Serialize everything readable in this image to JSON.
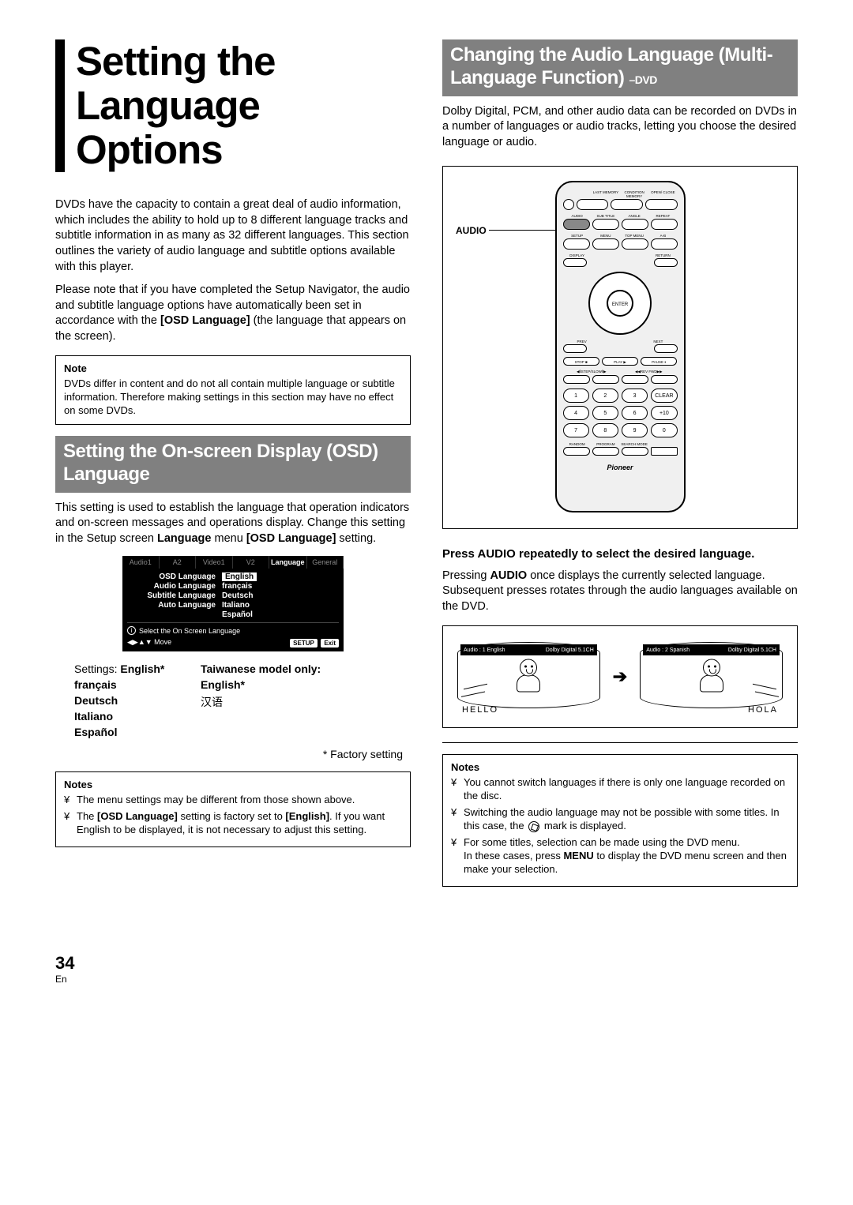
{
  "page": {
    "number": "34",
    "lang": "En"
  },
  "mainTitle": "Setting the Language Options",
  "intro": {
    "p1": "DVDs have the capacity to contain a great deal of audio information, which includes the ability to hold up to 8 different language tracks and subtitle information in as many as 32 different languages. This section outlines the variety of audio language and subtitle options available with this player.",
    "p2a": "Please note that if you have completed the Setup Navigator, the audio and subtitle language options have automatically been set in accordance with the ",
    "p2bold": "[OSD Language]",
    "p2b": " (the language that appears on the screen)."
  },
  "note1": {
    "label": "Note",
    "text": "DVDs differ in content and do not all contain multiple language or subtitle information. Therefore making settings in this section may have no effect on some DVDs."
  },
  "osdSection": {
    "title": "Setting the On-screen Display (OSD) Language",
    "p1a": "This setting is used to establish the language that operation indicators and on-screen messages and operations display. Change this setting in the Setup screen ",
    "p1b": "Language",
    "p1c": " menu ",
    "p1d": "[OSD Language]",
    "p1e": " setting."
  },
  "osdMenu": {
    "tabs": [
      "Audio1",
      "A2",
      "Video1",
      "V2",
      "Language",
      "General"
    ],
    "activeTab": 4,
    "rows": [
      {
        "label": "OSD Language",
        "value": "English",
        "hl": true
      },
      {
        "label": "Audio Language",
        "value": "français"
      },
      {
        "label": "Subtitle Language",
        "value": "Deutsch"
      },
      {
        "label": "Auto Language",
        "value": "Italiano"
      },
      {
        "label": "",
        "value": "Español"
      }
    ],
    "info": "Select the On Screen Language",
    "move": "Move",
    "setup": "SETUP",
    "exit": "Exit"
  },
  "settings": {
    "label": "Settings:",
    "colA": [
      "English*",
      "français",
      "Deutsch",
      "Italiano",
      "Español"
    ],
    "colBTitle": "Taiwanese model only:",
    "colB": [
      "English*",
      "汉语"
    ],
    "factory": "* Factory setting"
  },
  "notes2": {
    "label": "Notes",
    "items": [
      {
        "text": "The menu settings may be different from those shown above."
      },
      {
        "a": "The ",
        "b": "[OSD Language]",
        "c": " setting is factory set to ",
        "d": "[English]",
        "e": ". If you want English to be displayed, it is not necessary to adjust this setting."
      }
    ]
  },
  "audioSection": {
    "title": "Changing the Audio Language (Multi-Language Function) ",
    "titleSub": "–DVD",
    "p1": "Dolby Digital, PCM, and other audio data can be recorded on DVDs in a number of languages or audio tracks, letting you choose the desired language or audio.",
    "audioLabel": "AUDIO",
    "instr": "Press AUDIO repeatedly to select the desired language.",
    "p2a": "Pressing ",
    "p2bold": "AUDIO",
    "p2b": " once displays the currently selected language. Subsequent presses rotates through the audio languages available on the DVD."
  },
  "tv": {
    "bar1L": "Audio      : 1    English",
    "bar1R": "Dolby Digital 5.1CH",
    "bar2L": "Audio      : 2   Spanish",
    "bar2R": "Dolby Digital 5.1CH",
    "word1": "HELLO",
    "word2": "HOLA"
  },
  "notes3": {
    "label": "Notes",
    "items": [
      "You cannot switch languages if there is only one language recorded on the disc.",
      "Switching the audio language may not be possible with some titles. In this case, the __MARK__ mark is displayed.",
      "For some titles, selection can be made using the DVD menu.\nIn these cases, press MENU to display the DVD menu screen and then make your selection."
    ]
  },
  "remote": {
    "row1labels": [
      "",
      "LAST MEMORY",
      "CONDITION MEMORY",
      "OPEN/ CLOSE"
    ],
    "row2labels": [
      "AUDIO",
      "SUB TITLE",
      "ANGLE",
      "REPEAT"
    ],
    "row3labels": [
      "SETUP",
      "MENU",
      "TOP MENU",
      "A-B"
    ],
    "row4labels": [
      "DISPLAY",
      "",
      "",
      "RETURN"
    ],
    "prevnext": [
      "PREV",
      "NEXT"
    ],
    "transport": [
      "STOP ■",
      "PLAY ▶",
      "PAUSE ⏸"
    ],
    "step": [
      "◀ⅡSTEP/SLOWⅡ▶",
      "◀◀REV  FWD▶▶"
    ],
    "nums": [
      "1",
      "2",
      "3",
      "CLEAR",
      "4",
      "5",
      "6",
      "+10",
      "7",
      "8",
      "9",
      "0"
    ],
    "bottom": [
      "RANDOM",
      "PROGRAM",
      "SEARCH MODE",
      ""
    ],
    "logo": "Pioneer"
  }
}
